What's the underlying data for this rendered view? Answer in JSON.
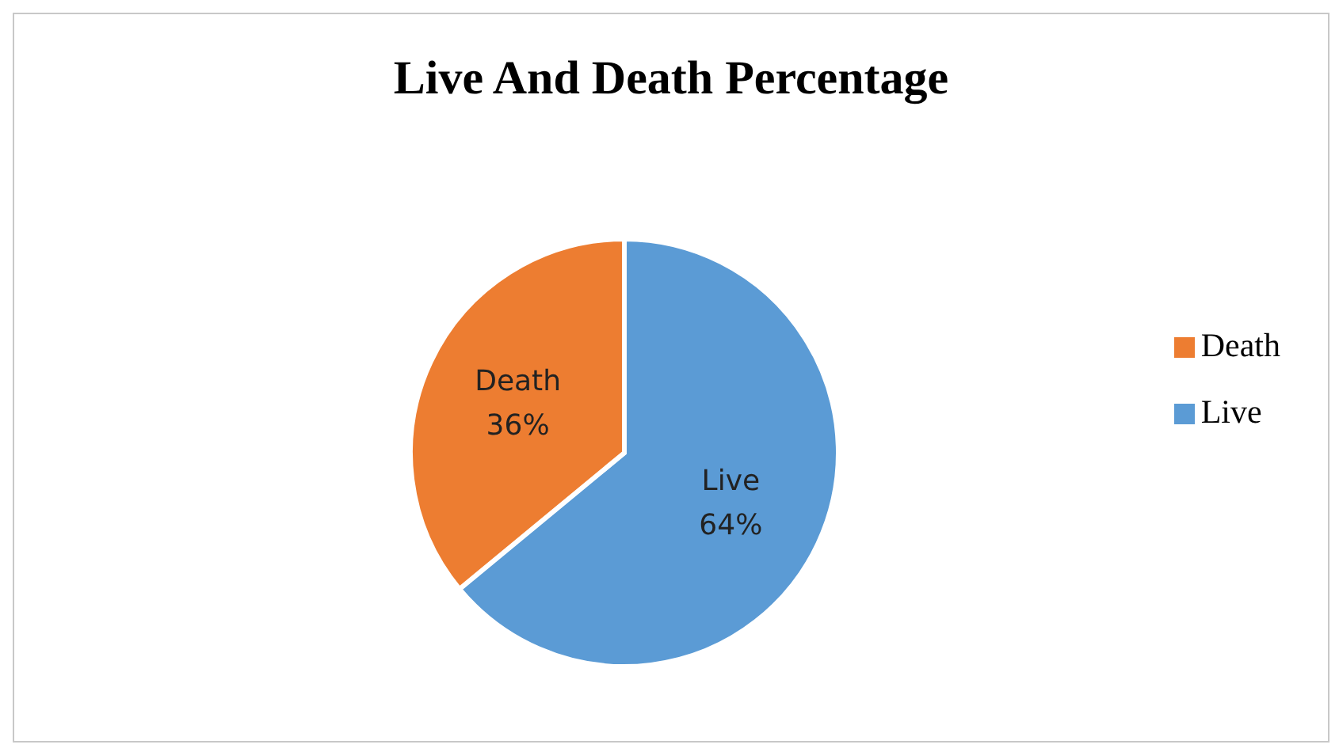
{
  "chart_data": {
    "type": "pie",
    "title": "Live And Death Percentage",
    "categories": [
      "Live",
      "Death"
    ],
    "values": [
      64,
      36
    ],
    "colors": [
      "#5b9bd5",
      "#ed7d31"
    ],
    "value_labels": [
      "64%",
      "36%"
    ],
    "legend": "right"
  }
}
